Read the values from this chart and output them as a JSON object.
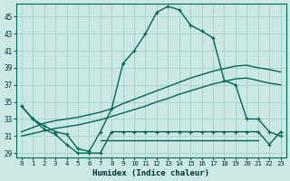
{
  "xlabel": "Humidex (Indice chaleur)",
  "bg_color": "#cce8e4",
  "grid_color": "#aad4cc",
  "line_color": "#006655",
  "xlim": [
    -0.5,
    23.5
  ],
  "ylim": [
    28.5,
    46.5
  ],
  "xticks": [
    0,
    1,
    2,
    3,
    4,
    5,
    6,
    7,
    8,
    9,
    10,
    11,
    12,
    13,
    14,
    15,
    16,
    17,
    18,
    19,
    20,
    21,
    22,
    23
  ],
  "yticks": [
    29,
    31,
    33,
    35,
    37,
    39,
    41,
    43,
    45
  ],
  "humidex_main": [
    34.5,
    33.0,
    32.2,
    31.5,
    31.2,
    29.5,
    29.2,
    31.5,
    34.2,
    39.5,
    41.0,
    43.0,
    45.5,
    46.2,
    45.8,
    44.0,
    43.3,
    42.5,
    37.5,
    37.0,
    33.0,
    33.0,
    31.5,
    31.0
  ],
  "lower_curve": [
    34.5,
    33.0,
    31.8,
    31.2,
    30.0,
    29.0,
    29.0,
    29.0,
    31.5,
    31.5,
    31.5,
    31.5,
    31.5,
    31.5,
    31.5,
    31.5,
    31.5,
    31.5,
    31.5,
    31.5,
    31.5,
    31.5,
    30.0,
    31.5
  ],
  "trend_upper": [
    31.5,
    32.0,
    32.5,
    32.8,
    33.0,
    33.2,
    33.5,
    33.8,
    34.2,
    34.8,
    35.3,
    35.8,
    36.3,
    36.8,
    37.3,
    37.8,
    38.2,
    38.6,
    38.9,
    39.2,
    39.3,
    39.0,
    38.8,
    38.5
  ],
  "trend_lower": [
    31.0,
    31.3,
    31.6,
    31.9,
    32.1,
    32.3,
    32.6,
    32.9,
    33.3,
    33.7,
    34.1,
    34.5,
    35.0,
    35.4,
    35.9,
    36.3,
    36.7,
    37.1,
    37.4,
    37.7,
    37.8,
    37.5,
    37.2,
    37.0
  ],
  "flat_line_x": [
    7,
    21
  ],
  "flat_line_y": [
    30.5,
    30.5
  ]
}
